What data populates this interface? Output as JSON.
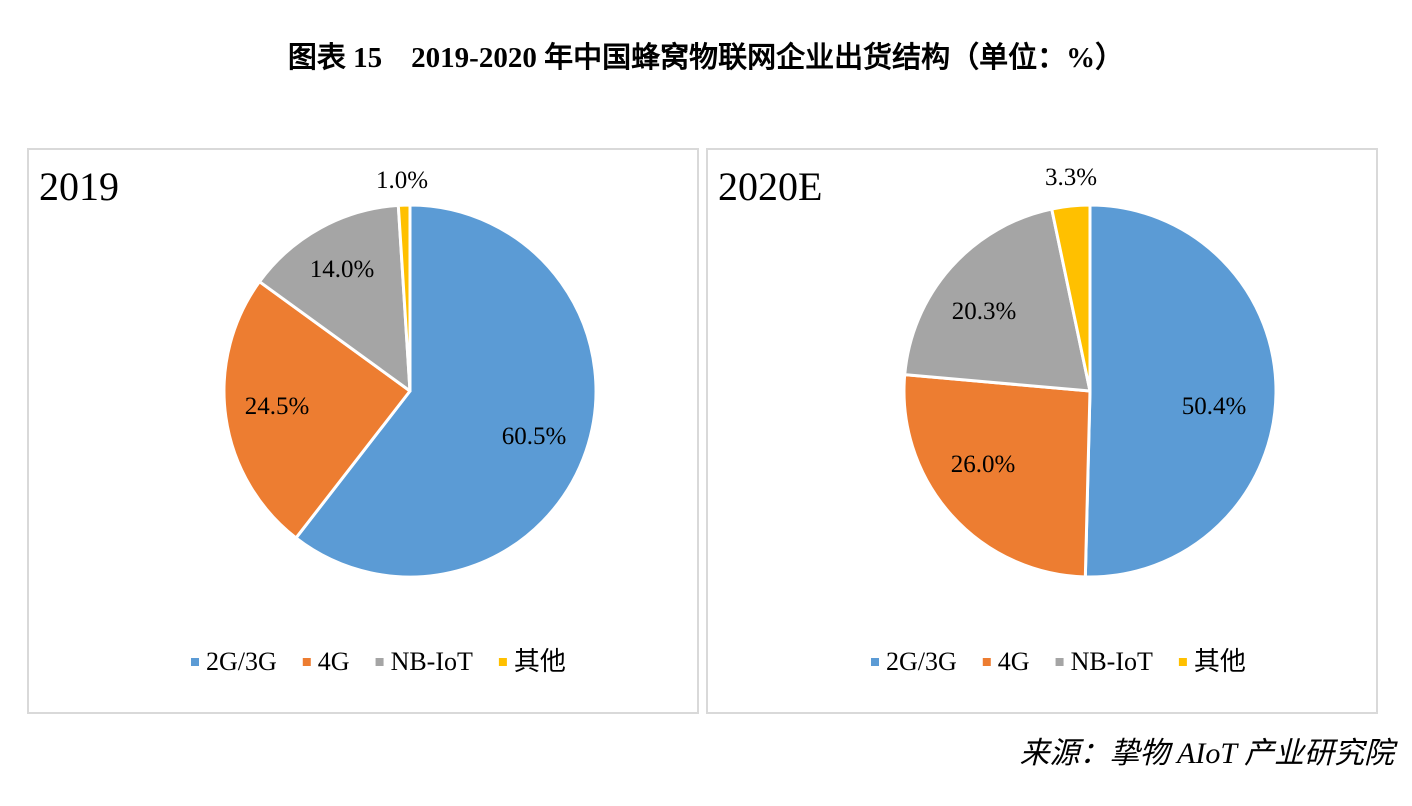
{
  "figure_title": "图表 15    2019-2020 年中国蜂窝物联网企业出货结构（单位：%）",
  "source": "来源：挚物 AIoT 产业研究院",
  "colors": {
    "2G/3G": "#5b9bd5",
    "4G": "#ed7d31",
    "NB-IoT": "#a5a5a5",
    "其他": "#ffc000",
    "separator": "#ffffff",
    "border": "#d9d9d9"
  },
  "chart_data": [
    {
      "type": "pie",
      "title": "2019",
      "categories": [
        "2G/3G",
        "4G",
        "NB-IoT",
        "其他"
      ],
      "values": [
        60.5,
        24.5,
        14.0,
        1.0
      ],
      "value_labels": [
        "60.5%",
        "24.5%",
        "14.0%",
        "1.0%"
      ],
      "legend": [
        "2G/3G",
        "4G",
        "NB-IoT",
        "其他"
      ],
      "legend_position": "bottom"
    },
    {
      "type": "pie",
      "title": "2020E",
      "categories": [
        "2G/3G",
        "4G",
        "NB-IoT",
        "其他"
      ],
      "values": [
        50.4,
        26.0,
        20.3,
        3.3
      ],
      "value_labels": [
        "50.4%",
        "26.0%",
        "20.3%",
        "3.3%"
      ],
      "legend": [
        "2G/3G",
        "4G",
        "NB-IoT",
        "其他"
      ],
      "legend_position": "bottom"
    }
  ]
}
